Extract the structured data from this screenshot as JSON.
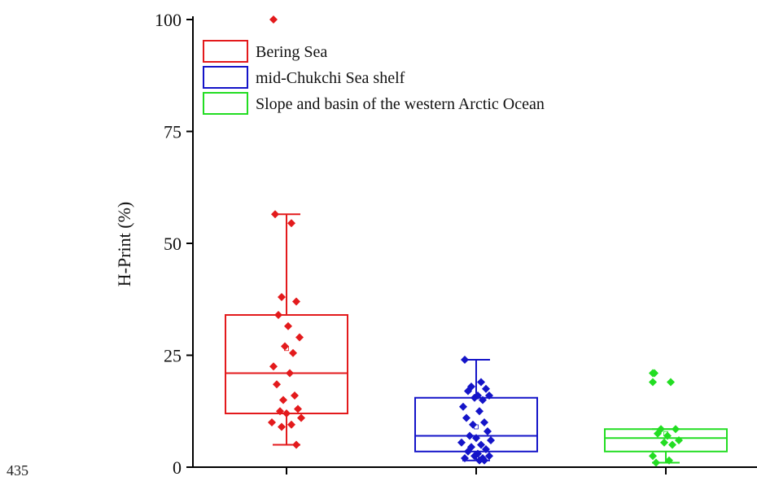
{
  "page_number": "435",
  "chart_data": {
    "type": "box",
    "ylabel": "H-Print (%)",
    "ylim": [
      0,
      100
    ],
    "yticks": [
      0,
      25,
      50,
      75,
      100
    ],
    "legend_position": "top-left",
    "series": [
      {
        "name": "Bering Sea",
        "color": "#e31a1c",
        "box": {
          "whisker_low": 5,
          "q1": 12,
          "median": 21,
          "q3": 34,
          "whisker_high": 56.5,
          "mean": 26.5
        },
        "outliers": [
          100
        ],
        "points": [
          56.5,
          54.5,
          38,
          37,
          34,
          31.5,
          29,
          27,
          25.5,
          22.5,
          21,
          18.5,
          16,
          15,
          13,
          12.5,
          12,
          11,
          10,
          9.5,
          9,
          5
        ]
      },
      {
        "name": "mid-Chukchi Sea shelf",
        "color": "#1414c8",
        "box": {
          "whisker_low": 1.5,
          "q1": 3.5,
          "median": 7,
          "q3": 15.5,
          "whisker_high": 24,
          "mean": 9
        },
        "outliers": [],
        "points": [
          24,
          19,
          18,
          17.5,
          17,
          16,
          16,
          15.5,
          15,
          13.5,
          12.5,
          11,
          10,
          9.5,
          8,
          7,
          6.5,
          6,
          5.5,
          5,
          4.5,
          4,
          3.5,
          3,
          2.5,
          2.5,
          2,
          2,
          1.5,
          1.5
        ]
      },
      {
        "name": "Slope and basin of the western Arctic Ocean",
        "color": "#22dd22",
        "box": {
          "whisker_low": 1,
          "q1": 3.5,
          "median": 6.5,
          "q3": 8.5,
          "whisker_high": 8.5,
          "mean": 7.5
        },
        "outliers": [
          21,
          19
        ],
        "points": [
          21,
          19,
          8.5,
          8.5,
          7.5,
          7,
          6,
          5.5,
          5,
          2.5,
          1.5,
          1
        ]
      }
    ]
  }
}
